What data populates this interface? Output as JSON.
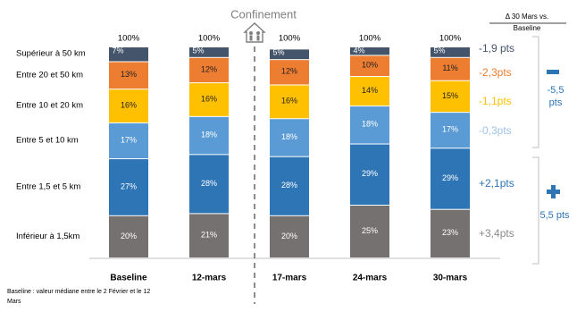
{
  "chart_data": {
    "type": "bar",
    "stacked": true,
    "percent_stacked": true,
    "annotation_title": "Confinement",
    "categories": [
      "Baseline",
      "12-mars",
      "17-mars",
      "24-mars",
      "30-mars"
    ],
    "totals": [
      "100%",
      "100%",
      "100%",
      "100%",
      "100%"
    ],
    "series": [
      {
        "name": "Inférieur à 1,5km",
        "values": [
          20,
          21,
          20,
          25,
          23
        ],
        "color": "#767171"
      },
      {
        "name": "Entre 1,5 et 5 km",
        "values": [
          27,
          28,
          28,
          29,
          29
        ],
        "color": "#2E75B6"
      },
      {
        "name": "Entre 5 et 10 km",
        "values": [
          17,
          18,
          18,
          18,
          17
        ],
        "color": "#5B9BD5"
      },
      {
        "name": "Entre 10 et 20 km",
        "values": [
          16,
          16,
          16,
          14,
          15
        ],
        "color": "#FFC000"
      },
      {
        "name": "Entre 20 et 50 km",
        "values": [
          13,
          12,
          12,
          10,
          11
        ],
        "color": "#ED7D31"
      },
      {
        "name": "Supérieur à 50 km",
        "values": [
          7,
          5,
          5,
          4,
          5
        ],
        "color": "#44546A"
      }
    ],
    "delta_header": [
      "Δ 30 Mars vs.",
      "Baseline"
    ],
    "deltas": [
      {
        "series": "Supérieur à 50 km",
        "text": "-1,9 pts",
        "color": "#44546A"
      },
      {
        "series": "Entre 20 et 50 km",
        "text": "-2,3pts",
        "color": "#ED7D31"
      },
      {
        "series": "Entre 10 et 20 km",
        "text": "-1,1pts",
        "color": "#FFC000"
      },
      {
        "series": "Entre 5 et 10 km",
        "text": "-0,3pts",
        "color": "#9DC3E6"
      },
      {
        "series": "Entre 1,5 et 5 km",
        "text": "+2,1pts",
        "color": "#2E75B6"
      },
      {
        "series": "Inférieur à 1,5km",
        "text": "+3,4pts",
        "color": "#8A8A8A"
      }
    ],
    "groups": [
      {
        "sign": "−",
        "text": [
          "-5,5",
          "pts"
        ],
        "color": "#2E75B6"
      },
      {
        "sign": "+",
        "text": [
          "5,5 pts"
        ],
        "color": "#2E75B6"
      }
    ],
    "footnote": [
      "Baseline : valeur médiane entre le 2 Février et le 12",
      "Mars"
    ]
  }
}
